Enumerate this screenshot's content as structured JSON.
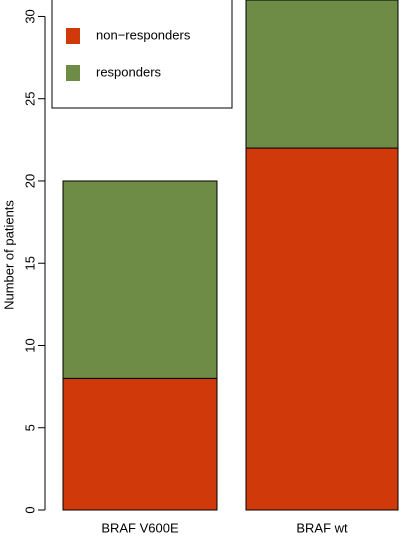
{
  "chart_data": {
    "type": "bar",
    "stacked": true,
    "ylabel": "Number of patients",
    "categories": [
      "BRAF V600E",
      "BRAF wt"
    ],
    "series": [
      {
        "name": "non−responders",
        "color": "#d03a0a",
        "values": [
          8,
          22
        ]
      },
      {
        "name": "responders",
        "color": "#6e8c45",
        "values": [
          12,
          9
        ]
      }
    ],
    "ylim": [
      0,
      31
    ],
    "yticks": [
      0,
      5,
      10,
      15,
      20,
      25,
      30
    ],
    "legend": "top-left"
  }
}
